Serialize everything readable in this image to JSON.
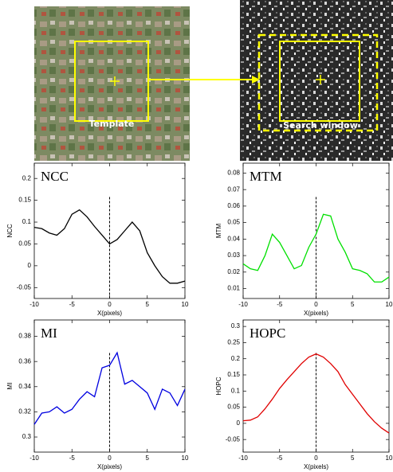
{
  "figure": {
    "template_label": "Template",
    "search_label": "Search window"
  },
  "chart_data": [
    {
      "type": "line",
      "title": "NCC",
      "ylabel": "NCC",
      "xlabel": "X(pixels)",
      "x": [
        -10,
        -9,
        -8,
        -7,
        -6,
        -5,
        -4,
        -3,
        -2,
        -1,
        0,
        1,
        2,
        3,
        4,
        5,
        6,
        7,
        8,
        9,
        10
      ],
      "series": [
        {
          "name": "NCC",
          "color": "#000000",
          "values": [
            0.088,
            0.085,
            0.075,
            0.07,
            0.085,
            0.118,
            0.128,
            0.112,
            0.09,
            0.07,
            0.05,
            0.06,
            0.08,
            0.1,
            0.08,
            0.03,
            0.0,
            -0.025,
            -0.04,
            -0.04,
            -0.035
          ]
        }
      ],
      "xlim": [
        -10,
        10
      ],
      "xticks": [
        -10,
        -5,
        0,
        5,
        10
      ],
      "ylim": [
        -0.075,
        0.235
      ],
      "yticks": [
        -0.05,
        0,
        0.05,
        0.1,
        0.15,
        0.2
      ],
      "vline": 0
    },
    {
      "type": "line",
      "title": "MTM",
      "ylabel": "MTM",
      "xlabel": "X(pixels)",
      "x": [
        -10,
        -9,
        -8,
        -7,
        -6,
        -5,
        -4,
        -3,
        -2,
        -1,
        0,
        1,
        2,
        3,
        4,
        5,
        6,
        7,
        8,
        9,
        10
      ],
      "series": [
        {
          "name": "MTM",
          "color": "#00e000",
          "values": [
            0.025,
            0.022,
            0.021,
            0.03,
            0.043,
            0.038,
            0.03,
            0.022,
            0.024,
            0.035,
            0.043,
            0.055,
            0.054,
            0.04,
            0.032,
            0.022,
            0.021,
            0.019,
            0.014,
            0.014,
            0.017
          ]
        }
      ],
      "xlim": [
        -10,
        10
      ],
      "xticks": [
        -10,
        -5,
        0,
        5,
        10
      ],
      "ylim": [
        0.004,
        0.086
      ],
      "yticks": [
        0.01,
        0.02,
        0.03,
        0.04,
        0.05,
        0.06,
        0.07,
        0.08
      ],
      "vline": 0
    },
    {
      "type": "line",
      "title": "MI",
      "ylabel": "MI",
      "xlabel": "X(pixels)",
      "x": [
        -10,
        -9,
        -8,
        -7,
        -6,
        -5,
        -4,
        -3,
        -2,
        -1,
        0,
        1,
        2,
        3,
        4,
        5,
        6,
        7,
        8,
        9,
        10
      ],
      "series": [
        {
          "name": "MI",
          "color": "#0000e0",
          "values": [
            0.31,
            0.319,
            0.32,
            0.324,
            0.319,
            0.322,
            0.33,
            0.336,
            0.332,
            0.355,
            0.357,
            0.367,
            0.342,
            0.345,
            0.34,
            0.335,
            0.322,
            0.338,
            0.335,
            0.325,
            0.338
          ]
        }
      ],
      "xlim": [
        -10,
        10
      ],
      "xticks": [
        -10,
        -5,
        0,
        5,
        10
      ],
      "ylim": [
        0.288,
        0.393
      ],
      "yticks": [
        0.3,
        0.32,
        0.34,
        0.36,
        0.38
      ],
      "vline": 0
    },
    {
      "type": "line",
      "title": "HOPC",
      "ylabel": "HOPC",
      "xlabel": "X(pixels)",
      "x": [
        -10,
        -9,
        -8,
        -7,
        -6,
        -5,
        -4,
        -3,
        -2,
        -1,
        0,
        1,
        2,
        3,
        4,
        5,
        6,
        7,
        8,
        9,
        10
      ],
      "series": [
        {
          "name": "HOPC",
          "color": "#e00000",
          "values": [
            0.008,
            0.01,
            0.02,
            0.045,
            0.075,
            0.108,
            0.135,
            0.16,
            0.185,
            0.205,
            0.215,
            0.205,
            0.185,
            0.16,
            0.12,
            0.09,
            0.06,
            0.03,
            0.005,
            -0.015,
            -0.03
          ]
        }
      ],
      "xlim": [
        -10,
        10
      ],
      "xticks": [
        -10,
        -5,
        0,
        5,
        10
      ],
      "ylim": [
        -0.089,
        0.32
      ],
      "yticks": [
        -0.05,
        0,
        0.05,
        0.1,
        0.15,
        0.2,
        0.25,
        0.3
      ],
      "vline": 0
    }
  ]
}
